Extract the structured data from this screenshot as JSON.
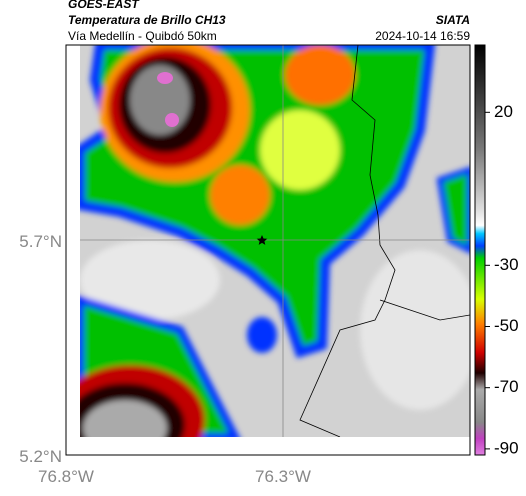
{
  "header": {
    "source": "GOES-EAST",
    "product": "Temperatura de Brillo CH13",
    "route": "Vía Medellín - Quibdó 50km",
    "agency": "SIATA",
    "timestamp": "2024-10-14 16:59"
  },
  "axes": {
    "lat_labels": [
      "5.7°N",
      "5.2°N"
    ],
    "lon_labels": [
      "76.8°W",
      "76.3°W"
    ]
  },
  "colorbar": {
    "lim": [
      -92,
      42
    ],
    "ticks": [
      20,
      -30,
      -50,
      -70,
      -90
    ]
  }
}
